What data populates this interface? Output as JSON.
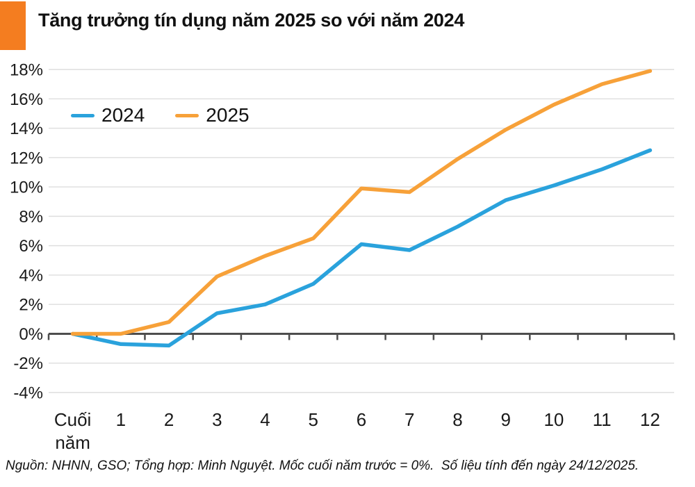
{
  "chart_data": {
    "type": "line",
    "title": "Tăng trưởng tín dụng năm 2025 so với năm 2024",
    "categories": [
      "Cuối năm",
      "1",
      "2",
      "3",
      "4",
      "5",
      "6",
      "7",
      "8",
      "9",
      "10",
      "11",
      "12"
    ],
    "series": [
      {
        "name": "2024",
        "color": "#2AA2DC",
        "values": [
          0,
          -0.7,
          -0.8,
          1.4,
          2.0,
          3.4,
          6.1,
          5.7,
          7.3,
          9.1,
          10.1,
          11.2,
          12.5
        ]
      },
      {
        "name": "2025",
        "color": "#F7A139",
        "values": [
          0,
          0.0,
          0.8,
          3.9,
          5.3,
          6.5,
          9.9,
          9.65,
          11.9,
          13.9,
          15.6,
          17.0,
          17.9
        ]
      }
    ],
    "xlabel": "",
    "ylabel": "",
    "ylim": [
      -4,
      18
    ],
    "yticks": [
      18,
      16,
      14,
      12,
      10,
      8,
      6,
      4,
      2,
      0,
      -2,
      -4
    ],
    "ytick_suffix": "%",
    "grid": true,
    "legend_position": "top-left",
    "baseline_note": "0% = cuối năm trước"
  },
  "header": {
    "accent_color": "#F47D20"
  },
  "colors": {
    "axis": "#4D4D4D",
    "grid": "#DEDEDE",
    "text": "#1A1A1A"
  },
  "footer": {
    "text": "Nguồn: NHNN, GSO; Tổng hợp: Minh Nguyệt. Mốc cuối năm trước = 0%.  Số liệu tính đến ngày 24/12/2025."
  }
}
